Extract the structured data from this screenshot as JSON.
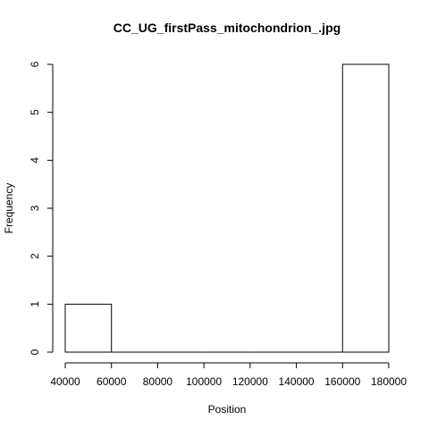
{
  "chart_data": {
    "type": "bar",
    "title": "CC_UG_firstPass_mitochondrion_.jpg",
    "xlabel": "Position",
    "ylabel": "Frequency",
    "bins": [
      {
        "start": 40000,
        "end": 60000,
        "count": 1
      },
      {
        "start": 60000,
        "end": 80000,
        "count": 0
      },
      {
        "start": 80000,
        "end": 100000,
        "count": 0
      },
      {
        "start": 100000,
        "end": 120000,
        "count": 0
      },
      {
        "start": 120000,
        "end": 140000,
        "count": 0
      },
      {
        "start": 140000,
        "end": 160000,
        "count": 0
      },
      {
        "start": 160000,
        "end": 180000,
        "count": 6
      }
    ],
    "xlim": [
      40000,
      180000
    ],
    "ylim": [
      0,
      6
    ],
    "x_ticks": [
      40000,
      60000,
      80000,
      100000,
      120000,
      140000,
      160000,
      180000
    ],
    "x_tick_labels": [
      "40000",
      "60000",
      "80000",
      "100000",
      "120000",
      "140000",
      "160000",
      "180000"
    ],
    "y_ticks": [
      0,
      1,
      2,
      3,
      4,
      5,
      6
    ],
    "y_tick_labels": [
      "0",
      "1",
      "2",
      "3",
      "4",
      "5",
      "6"
    ],
    "grid": false,
    "legend": "none"
  }
}
